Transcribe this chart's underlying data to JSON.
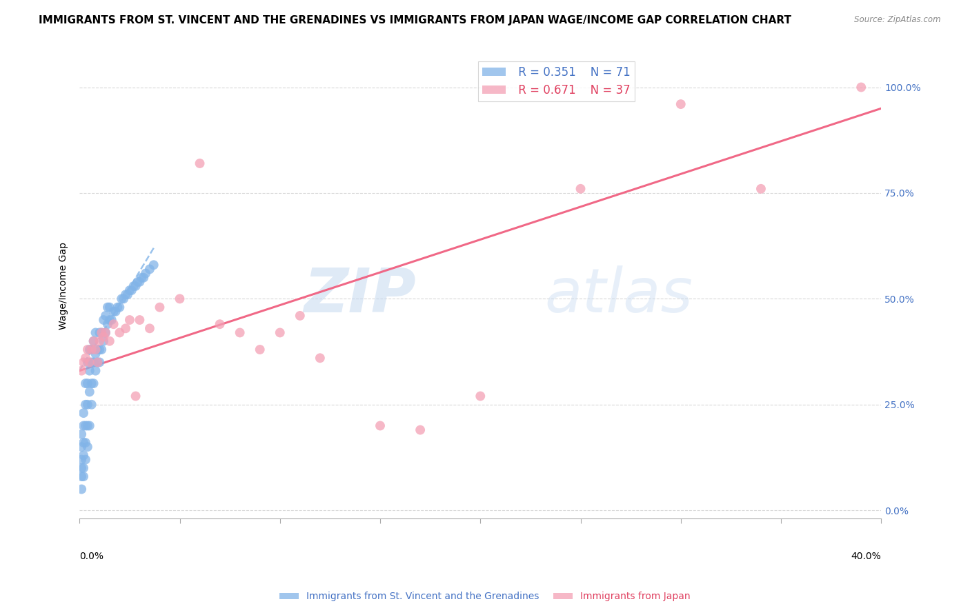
{
  "title": "IMMIGRANTS FROM ST. VINCENT AND THE GRENADINES VS IMMIGRANTS FROM JAPAN WAGE/INCOME GAP CORRELATION CHART",
  "source": "Source: ZipAtlas.com",
  "ylabel": "Wage/Income Gap",
  "ytick_labels": [
    "0.0%",
    "25.0%",
    "50.0%",
    "75.0%",
    "100.0%"
  ],
  "ytick_values": [
    0.0,
    0.25,
    0.5,
    0.75,
    1.0
  ],
  "xlim": [
    0.0,
    0.4
  ],
  "ylim": [
    -0.02,
    1.08
  ],
  "watermark_zip": "ZIP",
  "watermark_atlas": "atlas",
  "series1_label": "Immigrants from St. Vincent and the Grenadines",
  "series2_label": "Immigrants from Japan",
  "series1_color": "#82b4e8",
  "series2_color": "#f4a0b5",
  "series1_R": "0.351",
  "series1_N": "71",
  "series2_R": "0.671",
  "series2_N": "37",
  "series1_line_color": "#82b4e8",
  "series2_line_color": "#f06080",
  "background_color": "#ffffff",
  "grid_color": "#d8d8d8",
  "title_fontsize": 11,
  "axis_label_fontsize": 10,
  "tick_fontsize": 10,
  "legend_fontsize": 12,
  "series1_x": [
    0.001,
    0.001,
    0.001,
    0.001,
    0.001,
    0.001,
    0.002,
    0.002,
    0.002,
    0.002,
    0.002,
    0.002,
    0.003,
    0.003,
    0.003,
    0.003,
    0.003,
    0.004,
    0.004,
    0.004,
    0.004,
    0.004,
    0.005,
    0.005,
    0.005,
    0.005,
    0.006,
    0.006,
    0.006,
    0.006,
    0.007,
    0.007,
    0.007,
    0.008,
    0.008,
    0.008,
    0.009,
    0.009,
    0.01,
    0.01,
    0.01,
    0.011,
    0.011,
    0.012,
    0.012,
    0.013,
    0.013,
    0.014,
    0.014,
    0.015,
    0.015,
    0.016,
    0.017,
    0.018,
    0.019,
    0.02,
    0.021,
    0.022,
    0.023,
    0.024,
    0.025,
    0.026,
    0.027,
    0.028,
    0.029,
    0.03,
    0.031,
    0.032,
    0.033,
    0.035,
    0.037
  ],
  "series1_y": [
    0.05,
    0.08,
    0.1,
    0.12,
    0.15,
    0.18,
    0.08,
    0.1,
    0.13,
    0.16,
    0.2,
    0.23,
    0.12,
    0.16,
    0.2,
    0.25,
    0.3,
    0.15,
    0.2,
    0.25,
    0.3,
    0.35,
    0.2,
    0.28,
    0.33,
    0.38,
    0.25,
    0.3,
    0.35,
    0.38,
    0.3,
    0.35,
    0.4,
    0.33,
    0.37,
    0.42,
    0.35,
    0.38,
    0.35,
    0.38,
    0.42,
    0.38,
    0.42,
    0.4,
    0.45,
    0.42,
    0.46,
    0.44,
    0.48,
    0.45,
    0.48,
    0.45,
    0.47,
    0.47,
    0.48,
    0.48,
    0.5,
    0.5,
    0.51,
    0.51,
    0.52,
    0.52,
    0.53,
    0.53,
    0.54,
    0.54,
    0.55,
    0.55,
    0.56,
    0.57,
    0.58
  ],
  "series2_x": [
    0.001,
    0.002,
    0.003,
    0.004,
    0.005,
    0.006,
    0.007,
    0.008,
    0.009,
    0.01,
    0.011,
    0.012,
    0.013,
    0.015,
    0.017,
    0.02,
    0.023,
    0.025,
    0.028,
    0.03,
    0.035,
    0.04,
    0.05,
    0.06,
    0.07,
    0.08,
    0.09,
    0.1,
    0.11,
    0.12,
    0.15,
    0.17,
    0.2,
    0.25,
    0.3,
    0.34,
    0.39
  ],
  "series2_y": [
    0.33,
    0.35,
    0.36,
    0.38,
    0.35,
    0.38,
    0.4,
    0.38,
    0.35,
    0.4,
    0.42,
    0.41,
    0.42,
    0.4,
    0.44,
    0.42,
    0.43,
    0.45,
    0.27,
    0.45,
    0.43,
    0.48,
    0.5,
    0.82,
    0.44,
    0.42,
    0.38,
    0.42,
    0.46,
    0.36,
    0.2,
    0.19,
    0.27,
    0.76,
    0.96,
    0.76,
    1.0
  ],
  "trend1_x0": 0.0,
  "trend1_x1": 0.037,
  "trend1_y0": 0.33,
  "trend1_y1": 0.62,
  "trend2_x0": 0.0,
  "trend2_x1": 0.4,
  "trend2_y0": 0.33,
  "trend2_y1": 0.95
}
